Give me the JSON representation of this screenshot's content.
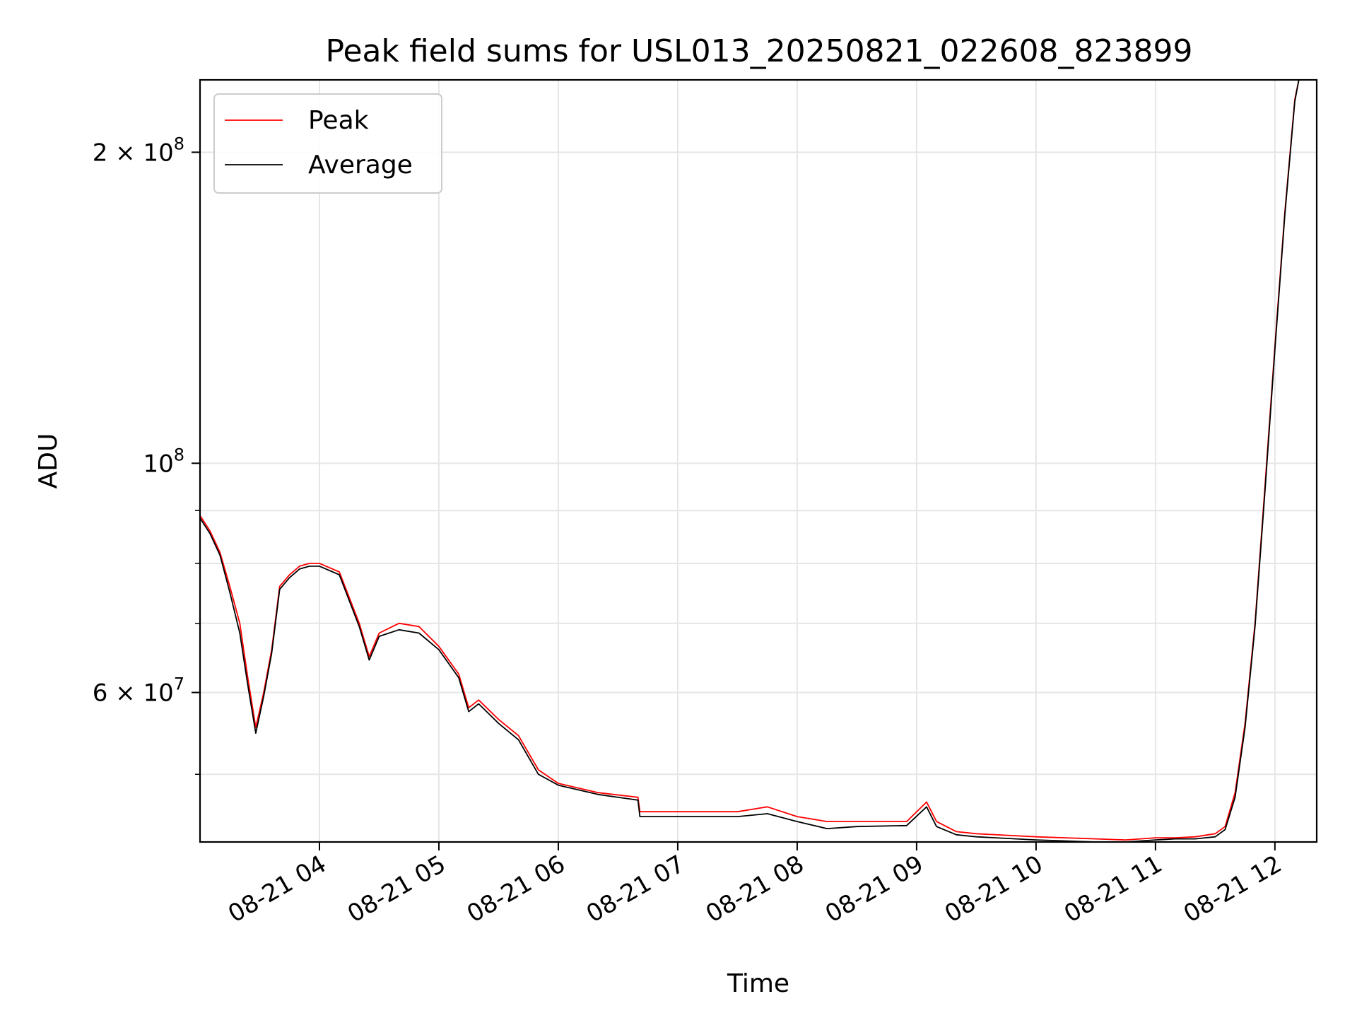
{
  "chart_data": {
    "type": "line",
    "title": "Peak field sums for USL013_20250821_022608_823899",
    "xlabel": "Time",
    "ylabel": "ADU",
    "yscale": "log",
    "ylim": [
      43000000,
      235000000
    ],
    "xlim": [
      "08-21 03:00",
      "08-21 12:21"
    ],
    "grid": true,
    "legend_position": "top-left",
    "x_ticks": [
      {
        "t": "08-21 04:00",
        "label": "08-21 04"
      },
      {
        "t": "08-21 05:00",
        "label": "08-21 05"
      },
      {
        "t": "08-21 06:00",
        "label": "08-21 06"
      },
      {
        "t": "08-21 07:00",
        "label": "08-21 07"
      },
      {
        "t": "08-21 08:00",
        "label": "08-21 08"
      },
      {
        "t": "08-21 09:00",
        "label": "08-21 09"
      },
      {
        "t": "08-21 10:00",
        "label": "08-21 10"
      },
      {
        "t": "08-21 11:00",
        "label": "08-21 11"
      },
      {
        "t": "08-21 12:00",
        "label": "08-21 12"
      }
    ],
    "y_ticks": [
      {
        "value": 60000000,
        "base": "6",
        "exp": "7"
      },
      {
        "value": 100000000,
        "base": "",
        "exp": "8"
      },
      {
        "value": 200000000,
        "base": "2",
        "exp": "8"
      }
    ],
    "y_minor_ticks": [
      50000000,
      70000000,
      80000000,
      90000000
    ],
    "series": [
      {
        "name": "Peak",
        "color": "#ff0000",
        "x": [
          "08-21 03:00",
          "08-21 03:05",
          "08-21 03:10",
          "08-21 03:15",
          "08-21 03:20",
          "08-21 03:24",
          "08-21 03:28",
          "08-21 03:32",
          "08-21 03:36",
          "08-21 03:40",
          "08-21 03:45",
          "08-21 03:50",
          "08-21 03:55",
          "08-21 04:00",
          "08-21 04:10",
          "08-21 04:20",
          "08-21 04:25",
          "08-21 04:30",
          "08-21 04:40",
          "08-21 04:50",
          "08-21 05:00",
          "08-21 05:10",
          "08-21 05:15",
          "08-21 05:20",
          "08-21 05:30",
          "08-21 05:40",
          "08-21 05:50",
          "08-21 06:00",
          "08-21 06:20",
          "08-21 06:40",
          "08-21 06:41",
          "08-21 07:00",
          "08-21 07:30",
          "08-21 07:45",
          "08-21 08:00",
          "08-21 08:15",
          "08-21 08:30",
          "08-21 08:55",
          "08-21 09:05",
          "08-21 09:10",
          "08-21 09:20",
          "08-21 09:30",
          "08-21 10:00",
          "08-21 10:30",
          "08-21 10:45",
          "08-21 11:00",
          "08-21 11:10",
          "08-21 11:20",
          "08-21 11:30",
          "08-21 11:35",
          "08-21 11:40",
          "08-21 11:45",
          "08-21 11:50",
          "08-21 11:55",
          "08-21 12:00",
          "08-21 12:05",
          "08-21 12:10",
          "08-21 12:12"
        ],
        "y": [
          89000000,
          86000000,
          82000000,
          76000000,
          70000000,
          62000000,
          55500000,
          60000000,
          66000000,
          76000000,
          78000000,
          79500000,
          80000000,
          80000000,
          78500000,
          70000000,
          65000000,
          68500000,
          70000000,
          69500000,
          66500000,
          62500000,
          58000000,
          59000000,
          56500000,
          54500000,
          50500000,
          49000000,
          48000000,
          47500000,
          46000000,
          46000000,
          46000000,
          46500000,
          45500000,
          45000000,
          45000000,
          45000000,
          47000000,
          45000000,
          44000000,
          43800000,
          43500000,
          43300000,
          43200000,
          43400000,
          43400000,
          43500000,
          43800000,
          44500000,
          48000000,
          56000000,
          70000000,
          95000000,
          130000000,
          175000000,
          225000000,
          235000000
        ]
      },
      {
        "name": "Average",
        "color": "#000000",
        "x": [
          "08-21 03:00",
          "08-21 03:05",
          "08-21 03:10",
          "08-21 03:15",
          "08-21 03:20",
          "08-21 03:24",
          "08-21 03:28",
          "08-21 03:32",
          "08-21 03:36",
          "08-21 03:40",
          "08-21 03:45",
          "08-21 03:50",
          "08-21 03:55",
          "08-21 04:00",
          "08-21 04:10",
          "08-21 04:20",
          "08-21 04:25",
          "08-21 04:30",
          "08-21 04:40",
          "08-21 04:50",
          "08-21 05:00",
          "08-21 05:10",
          "08-21 05:15",
          "08-21 05:20",
          "08-21 05:30",
          "08-21 05:40",
          "08-21 05:50",
          "08-21 06:00",
          "08-21 06:20",
          "08-21 06:40",
          "08-21 06:41",
          "08-21 07:00",
          "08-21 07:30",
          "08-21 07:45",
          "08-21 08:00",
          "08-21 08:15",
          "08-21 08:30",
          "08-21 08:55",
          "08-21 09:05",
          "08-21 09:10",
          "08-21 09:20",
          "08-21 09:30",
          "08-21 10:00",
          "08-21 10:30",
          "08-21 10:45",
          "08-21 11:00",
          "08-21 11:10",
          "08-21 11:20",
          "08-21 11:30",
          "08-21 11:35",
          "08-21 11:40",
          "08-21 11:45",
          "08-21 11:50",
          "08-21 11:55",
          "08-21 12:00",
          "08-21 12:05",
          "08-21 12:10",
          "08-21 12:12"
        ],
        "y": [
          88500000,
          85500000,
          81500000,
          75000000,
          68500000,
          61000000,
          54800000,
          59500000,
          65500000,
          75500000,
          77500000,
          79000000,
          79500000,
          79500000,
          78000000,
          69500000,
          64500000,
          68000000,
          69000000,
          68500000,
          66000000,
          62000000,
          57500000,
          58500000,
          56000000,
          54000000,
          50000000,
          48800000,
          47800000,
          47200000,
          45500000,
          45500000,
          45500000,
          45800000,
          45000000,
          44300000,
          44500000,
          44600000,
          46500000,
          44500000,
          43700000,
          43500000,
          43200000,
          43000000,
          43000000,
          43200000,
          43300000,
          43300000,
          43500000,
          44200000,
          47500000,
          55500000,
          69500000,
          94000000,
          129000000,
          174000000,
          224000000,
          235000000
        ]
      }
    ]
  }
}
